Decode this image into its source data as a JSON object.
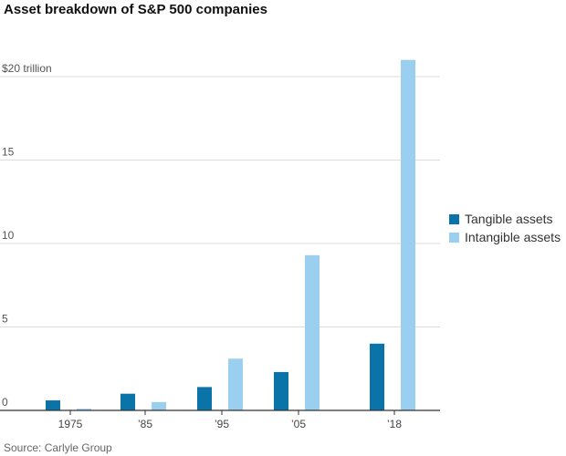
{
  "chart_data": {
    "type": "bar",
    "title": "Asset breakdown of S&P 500 companies",
    "categories": [
      "1975",
      "’85",
      "’95",
      "’05",
      "’18"
    ],
    "series": [
      {
        "name": "Tangible assets",
        "values": [
          0.6,
          1.0,
          1.4,
          2.3,
          4.0
        ]
      },
      {
        "name": "Intangible assets",
        "values": [
          0.1,
          0.5,
          3.1,
          9.3,
          21.0
        ]
      }
    ],
    "ylim": [
      0,
      20
    ],
    "yticks": [
      {
        "value": 0,
        "label": "0"
      },
      {
        "value": 5,
        "label": "5"
      },
      {
        "value": 10,
        "label": "10"
      },
      {
        "value": 15,
        "label": "15"
      },
      {
        "value": 20,
        "label": "$20 trillion"
      }
    ],
    "xlabel": "",
    "ylabel": "",
    "grid": true,
    "legend_position": "right",
    "colors": {
      "tangible": "#0a73a8",
      "intangible": "#9bcff0",
      "grid": "#dddddd",
      "axis": "#333333"
    },
    "source": "Source: Carlyle Group"
  }
}
